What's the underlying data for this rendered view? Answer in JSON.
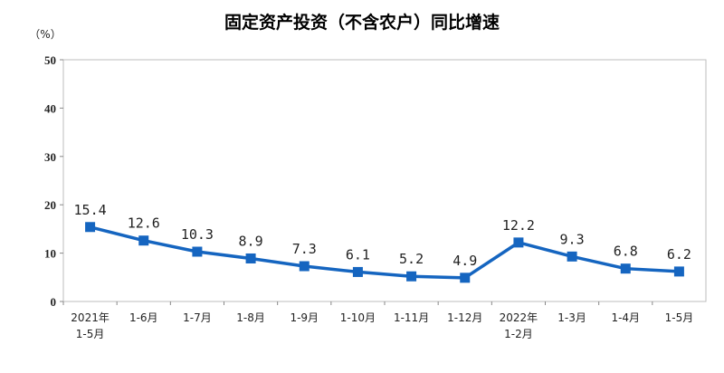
{
  "chart_data": {
    "type": "line",
    "title": "固定资产投资（不含农户）同比增速",
    "ylabel": "（%）",
    "ylim": [
      0,
      50
    ],
    "yticks": [
      0,
      10,
      20,
      30,
      40,
      50
    ],
    "grid": false,
    "categories": [
      [
        "2021年",
        "1-5月"
      ],
      [
        "1-6月"
      ],
      [
        "1-7月"
      ],
      [
        "1-8月"
      ],
      [
        "1-9月"
      ],
      [
        "1-10月"
      ],
      [
        "1-11月"
      ],
      [
        "1-12月"
      ],
      [
        "2022年",
        "1-2月"
      ],
      [
        "1-3月"
      ],
      [
        "1-4月"
      ],
      [
        "1-5月"
      ]
    ],
    "series": [
      {
        "values": [
          15.4,
          12.6,
          10.3,
          8.9,
          7.3,
          6.1,
          5.2,
          4.9,
          12.2,
          9.3,
          6.8,
          6.2
        ],
        "labels": [
          "15.4",
          "12.6",
          "10.3",
          "8.9",
          "7.3",
          "6.1",
          "5.2",
          "4.9",
          "12.2",
          "9.3",
          "6.8",
          "6.2"
        ]
      }
    ],
    "line_color": "#1565C0"
  }
}
